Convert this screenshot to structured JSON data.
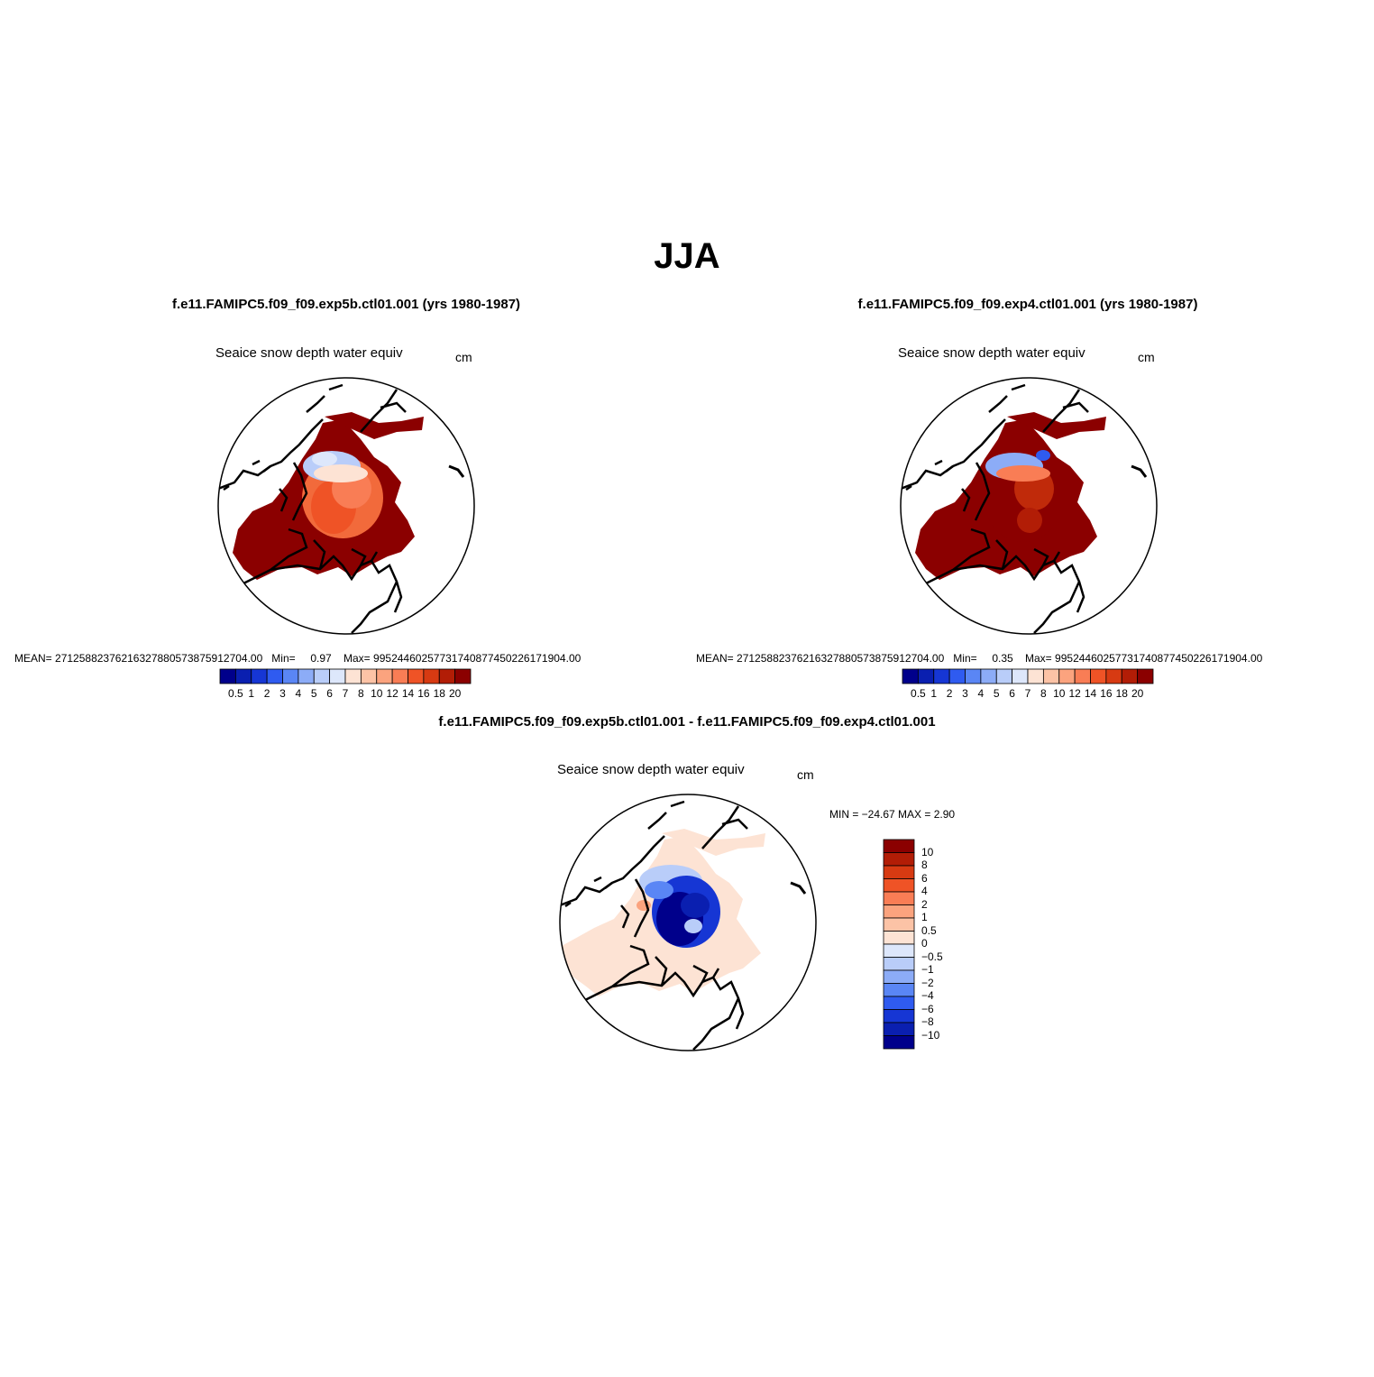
{
  "main_title": "JJA",
  "panels": [
    {
      "run": "f.e11.FAMIPC5.f09_f09.exp5b.ctl01.001 (yrs 1980-1987)",
      "variable": "Seaice snow depth water equiv",
      "units": "cm",
      "stats": {
        "mean_label": "MEAN=",
        "mean": "27125882376216327880573875912704.00",
        "min_label": "Min=",
        "min": "0.97",
        "max_label": "Max=",
        "max": "99524460257731740877450226171904.00"
      }
    },
    {
      "run": "f.e11.FAMIPC5.f09_f09.exp4.ctl01.001 (yrs 1980-1987)",
      "variable": "Seaice snow depth water equiv",
      "units": "cm",
      "stats": {
        "mean_label": "MEAN=",
        "mean": "27125882376216327880573875912704.00",
        "min_label": "Min=",
        "min": "0.35",
        "max_label": "Max=",
        "max": "99524460257731740877450226171904.00"
      }
    }
  ],
  "difference_panel": {
    "title": "f.e11.FAMIPC5.f09_f09.exp5b.ctl01.001 - f.e11.FAMIPC5.f09_f09.exp4.ctl01.001",
    "variable": "Seaice snow depth water equiv",
    "units": "cm",
    "minmax": "MIN = −24.67  MAX =    2.90"
  },
  "colorbar_abs": {
    "labels": [
      "0.5",
      "1",
      "2",
      "3",
      "4",
      "5",
      "6",
      "7",
      "8",
      "10",
      "12",
      "14",
      "16",
      "18",
      "20"
    ],
    "colors": [
      "#00008b",
      "#0a1fb0",
      "#1636d4",
      "#2f5bf0",
      "#5a86f5",
      "#8cacf7",
      "#b9cdf9",
      "#dde7fb",
      "#fde3d4",
      "#fcc3a6",
      "#fba37e",
      "#f97d55",
      "#ef5326",
      "#d73a12",
      "#b21d06",
      "#8b0000"
    ]
  },
  "colorbar_diff": {
    "labels": [
      "10",
      "8",
      "6",
      "4",
      "2",
      "1",
      "0.5",
      "0",
      "−0.5",
      "−1",
      "−2",
      "−4",
      "−6",
      "−8",
      "−10"
    ],
    "colors": [
      "#8b0000",
      "#b21d06",
      "#d73a12",
      "#ef5326",
      "#f97d55",
      "#fba37e",
      "#fcc3a6",
      "#fde3d4",
      "#dde7fb",
      "#b9cdf9",
      "#8cacf7",
      "#5a86f5",
      "#2f5bf0",
      "#1636d4",
      "#0a1fb0",
      "#00008b"
    ]
  },
  "colors": {
    "land_outline": "#000000",
    "high_value": "#8b0000",
    "low_value": "#00008b",
    "near_zero": "#fde3d4"
  }
}
